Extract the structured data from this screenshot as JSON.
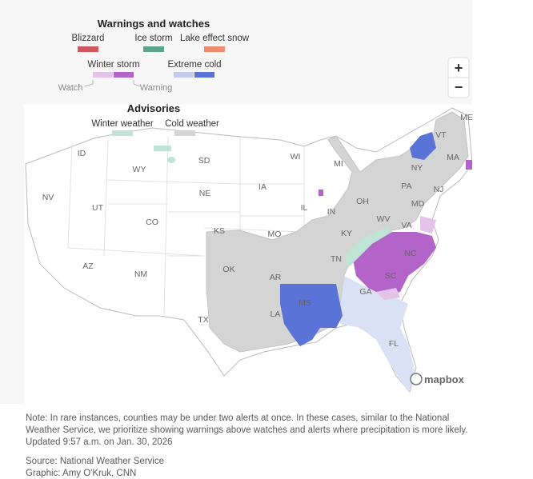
{
  "legend": {
    "title": "Warnings and watches",
    "row1": [
      {
        "label": "Blizzard",
        "color": "#d2555a"
      },
      {
        "label": "Ice storm",
        "color": "#5aa58c"
      },
      {
        "label": "Lake effect snow",
        "color": "#f08c6e"
      }
    ],
    "row2": [
      {
        "label": "Winter storm",
        "watch_color": "#e4c3ea",
        "warning_color": "#b264c8"
      },
      {
        "label": "Extreme cold",
        "watch_color": "#c3cdf0",
        "warning_color": "#5a73d7"
      }
    ],
    "watch_label": "Watch",
    "warning_label": "Warning",
    "advisories_title": "Advisories",
    "advisories": [
      {
        "label": "Winter weather",
        "color": "#bfe3d4"
      },
      {
        "label": "Cold weather",
        "color": "#d4d4d4"
      }
    ]
  },
  "zoom": {
    "in": "+",
    "out": "−"
  },
  "state_labels": [
    "ME",
    "VT",
    "NY",
    "MA",
    "PA",
    "NJ",
    "MD",
    "WV",
    "VA",
    "NC",
    "SC",
    "GA",
    "FL",
    "OH",
    "IN",
    "KY",
    "TN",
    "MI",
    "WI",
    "IL",
    "IA",
    "MO",
    "AR",
    "MS",
    "LA",
    "KS",
    "OK",
    "TX",
    "NE",
    "SD",
    "WY",
    "ID",
    "NV",
    "UT",
    "CO",
    "AZ",
    "NM"
  ],
  "attribution": "mapbox",
  "note": "Note: In rare instances, counties may be under two alerts at once. In these cases, similar to the National Weather Service, we prioritize showing warnings above watches and alerts where precipitation is more likely. Updated 9:57 a.m. on Jan. 30, 2026",
  "source": "Source: National Weather Service",
  "credit": "Graphic: Amy O'Kruk, CNN"
}
